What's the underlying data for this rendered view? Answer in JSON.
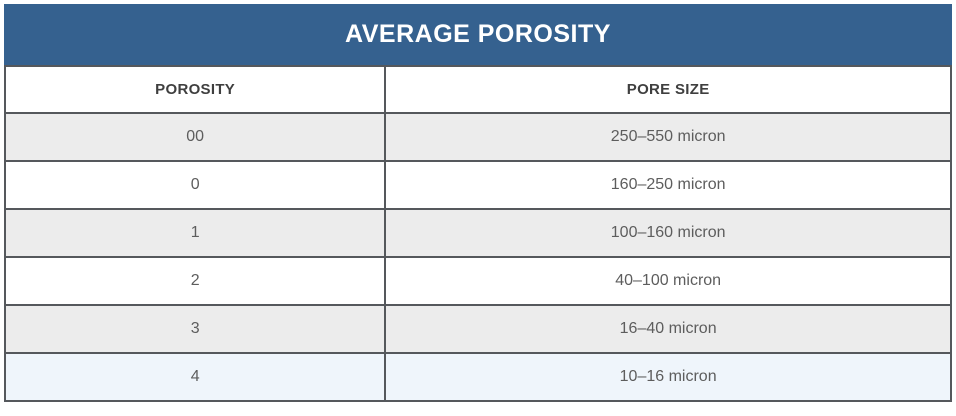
{
  "title": "AVERAGE POROSITY",
  "chart_data": {
    "type": "table",
    "title": "AVERAGE POROSITY",
    "columns": [
      "POROSITY",
      "PORE SIZE"
    ],
    "rows": [
      [
        "00",
        "250–550 micron"
      ],
      [
        "0",
        "160–250 micron"
      ],
      [
        "1",
        "100–160 micron"
      ],
      [
        "2",
        "40–100 micron"
      ],
      [
        "3",
        "16–40 micron"
      ],
      [
        "4",
        "10–16 micron"
      ]
    ]
  },
  "colors": {
    "header_bg": "#35618f",
    "header_text": "#ffffff",
    "border": "#55585c",
    "row_alt_bg": "#ececec",
    "row_highlight_bg": "#eff5fb",
    "cell_text": "#5d5d5d",
    "column_header_text": "#3f3f3f",
    "page_bg": "#ffffff"
  }
}
